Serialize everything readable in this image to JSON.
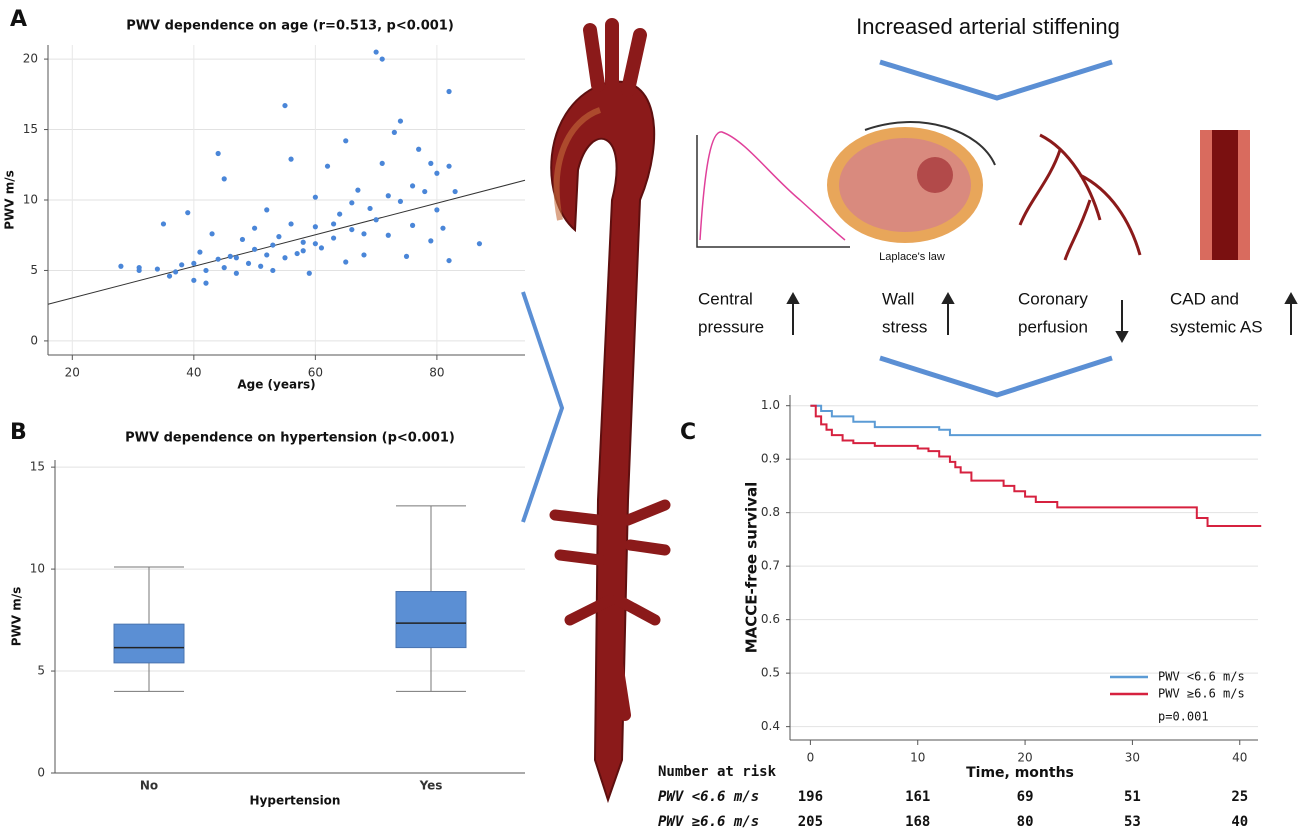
{
  "chart_data": [
    {
      "type": "scatter",
      "panel": "A",
      "title": "PWV dependence on age (r=0.513, p<0.001)",
      "x_label": "Age (years)",
      "y_label": "PWV m/s",
      "x": [
        28,
        31,
        31,
        34,
        35,
        37,
        38,
        39,
        40,
        40,
        41,
        42,
        43,
        44,
        44,
        45,
        46,
        47,
        48,
        49,
        50,
        50,
        51,
        52,
        53,
        54,
        55,
        55,
        56,
        56,
        57,
        58,
        59,
        60,
        60,
        61,
        62,
        63,
        64,
        65,
        65,
        66,
        67,
        68,
        69,
        70,
        70,
        71,
        71,
        72,
        73,
        74,
        74,
        75,
        76,
        76,
        77,
        78,
        79,
        79,
        80,
        80,
        81,
        82,
        82,
        82,
        83,
        87,
        47,
        52,
        58,
        63,
        68,
        45,
        53,
        60,
        66,
        72,
        36,
        42
      ],
      "values": [
        5.3,
        5.0,
        5.2,
        5.1,
        8.3,
        4.9,
        5.4,
        9.1,
        4.3,
        5.5,
        6.3,
        5.0,
        7.6,
        13.3,
        5.8,
        11.5,
        6.0,
        4.8,
        7.2,
        5.5,
        8.0,
        6.5,
        5.3,
        9.3,
        6.8,
        7.4,
        5.9,
        16.7,
        12.9,
        8.3,
        6.2,
        7.0,
        4.8,
        10.2,
        8.1,
        6.6,
        12.4,
        7.3,
        9.0,
        14.2,
        5.6,
        7.9,
        10.7,
        6.1,
        9.4,
        20.5,
        8.6,
        12.6,
        20.0,
        7.5,
        14.8,
        15.6,
        9.9,
        6.0,
        11.0,
        8.2,
        13.6,
        10.6,
        7.1,
        12.6,
        9.3,
        11.9,
        8.0,
        17.7,
        12.4,
        5.7,
        10.6,
        6.9,
        5.9,
        6.1,
        6.4,
        8.3,
        7.6,
        5.2,
        5.0,
        6.9,
        9.8,
        10.3,
        4.6,
        4.1
      ],
      "color": "#4a86d8",
      "fit_line": {
        "x": [
          16,
          94.5
        ],
        "y": [
          2.6,
          11.4
        ],
        "color": "#333333"
      },
      "xlim": [
        16,
        94.5
      ],
      "ylim": [
        -1,
        21
      ],
      "xticks": [
        20,
        40,
        60,
        80
      ],
      "yticks": [
        0,
        5,
        10,
        15,
        20
      ],
      "grid": true
    },
    {
      "type": "box",
      "panel": "B",
      "title": "PWV dependence on hypertension (p<0.001)",
      "x_label": "Hypertension",
      "y_label": "PWV m/s",
      "categories": [
        "No",
        "Yes"
      ],
      "min": [
        4.0,
        4.0
      ],
      "q1": [
        5.4,
        6.15
      ],
      "median": [
        6.15,
        7.35
      ],
      "q3": [
        7.3,
        8.9
      ],
      "max": [
        10.1,
        13.1
      ],
      "color": "#5b8fd4",
      "ylim": [
        0,
        15.35
      ],
      "yticks": [
        0,
        5,
        10,
        15
      ],
      "grid": true
    },
    {
      "type": "step",
      "panel": "C",
      "y_label": "MACCE-free survival",
      "x_label": "Time, months",
      "series": [
        {
          "name": "PWV <6.6 m/s",
          "color": "#5b9bd5",
          "x": [
            0,
            1,
            2,
            4,
            6,
            12,
            13,
            42
          ],
          "values": [
            1.0,
            0.99,
            0.98,
            0.97,
            0.96,
            0.955,
            0.945,
            0.945
          ]
        },
        {
          "name": "PWV ≥6.6 m/s",
          "color": "#d6213f",
          "x": [
            0,
            0.5,
            1,
            1.5,
            2,
            3,
            4,
            6,
            10,
            11,
            12,
            13,
            13.5,
            14,
            15,
            18,
            19,
            20,
            21,
            23,
            29,
            36,
            37,
            42
          ],
          "values": [
            1.0,
            0.98,
            0.965,
            0.955,
            0.945,
            0.935,
            0.93,
            0.925,
            0.92,
            0.915,
            0.905,
            0.895,
            0.885,
            0.875,
            0.86,
            0.85,
            0.84,
            0.83,
            0.82,
            0.81,
            0.81,
            0.79,
            0.775,
            0.775
          ]
        }
      ],
      "annotation": "p=0.001",
      "legend": "lower-right",
      "xlim": [
        -1.9,
        41.7
      ],
      "ylim": [
        0.375,
        1.02
      ],
      "xticks": [
        0,
        10,
        20,
        30,
        40
      ],
      "yticks": [
        {
          "value": 1.0,
          "label": "1.0"
        },
        0.9,
        0.8,
        0.7,
        0.6,
        0.5,
        0.4
      ],
      "grid": true,
      "risk_table": {
        "title": "Number at risk",
        "rows": [
          {
            "name": "PWV <6.6 m/s",
            "values": [
              196,
              161,
              69,
              51,
              25
            ]
          },
          {
            "name": "PWV ≥6.6 m/s",
            "values": [
              205,
              168,
              80,
              53,
              40
            ]
          }
        ]
      }
    }
  ],
  "diagram": {
    "title": "Increased arterial stiffening",
    "caption": "Laplace's law",
    "labels": [
      {
        "lines": [
          "Central",
          "pressure"
        ]
      },
      {
        "lines": [
          "Wall",
          "stress"
        ]
      },
      {
        "lines": [
          "Coronary",
          "perfusion"
        ]
      },
      {
        "lines": [
          "CAD and",
          "systemic AS"
        ]
      }
    ]
  }
}
